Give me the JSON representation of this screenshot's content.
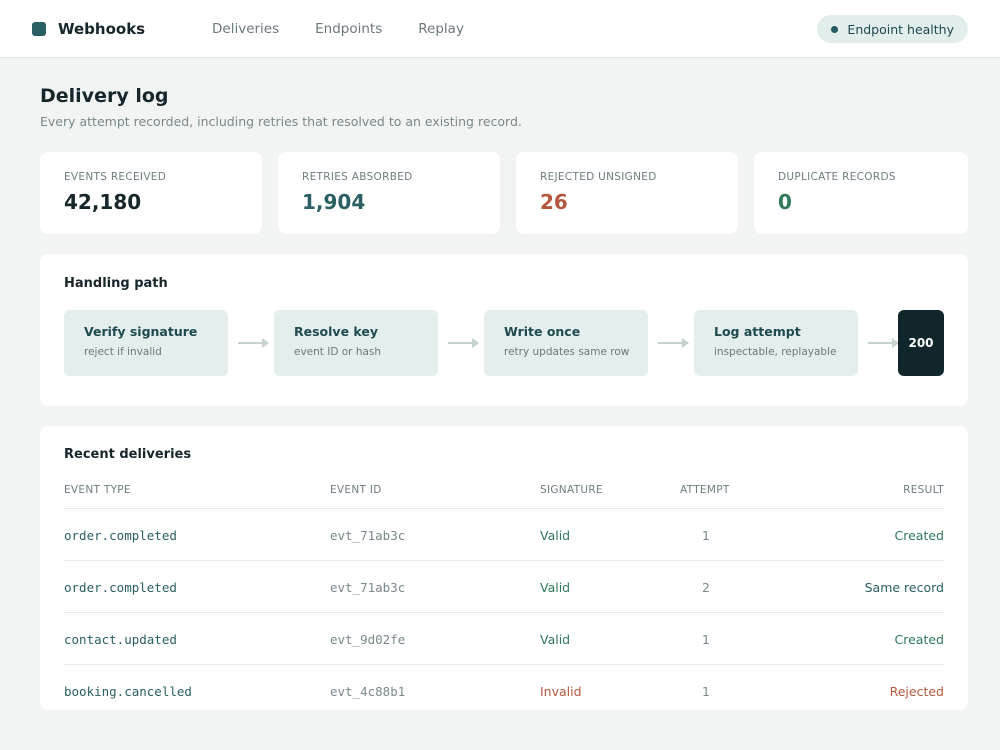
{
  "header": {
    "app_name": "Webhooks",
    "nav": [
      "Deliveries",
      "Endpoints",
      "Replay"
    ],
    "status": "Endpoint healthy"
  },
  "page": {
    "title": "Delivery log",
    "subtitle": "Every attempt recorded, including retries that resolved to an existing record."
  },
  "stats": [
    {
      "label": "EVENTS RECEIVED",
      "value": "42,180",
      "color": "#17262b"
    },
    {
      "label": "RETRIES ABSORBED",
      "value": "1,904",
      "color": "#2a5f63"
    },
    {
      "label": "REJECTED UNSIGNED",
      "value": "26",
      "color": "#b5563f"
    },
    {
      "label": "DUPLICATE RECORDS",
      "value": "0",
      "color": "#2f7a58"
    }
  ],
  "handling": {
    "title": "Handling path",
    "steps": [
      {
        "title": "Verify signature",
        "sub": "reject if invalid"
      },
      {
        "title": "Resolve key",
        "sub": "event ID or hash"
      },
      {
        "title": "Write once",
        "sub": "retry updates same row"
      },
      {
        "title": "Log attempt",
        "sub": "inspectable, replayable"
      }
    ],
    "final": "200"
  },
  "deliveries": {
    "title": "Recent deliveries",
    "columns": {
      "event_type": "EVENT TYPE",
      "event_id": "EVENT ID",
      "signature": "SIGNATURE",
      "attempt": "ATTEMPT",
      "result": "RESULT"
    },
    "rows": [
      {
        "event_type": "order.completed",
        "event_id": "evt_71ab3c",
        "signature": "Valid",
        "attempt": "1",
        "result": "Created"
      },
      {
        "event_type": "order.completed",
        "event_id": "evt_71ab3c",
        "signature": "Valid",
        "attempt": "2",
        "result": "Same record"
      },
      {
        "event_type": "contact.updated",
        "event_id": "evt_9d02fe",
        "signature": "Valid",
        "attempt": "1",
        "result": "Created"
      },
      {
        "event_type": "booking.cancelled",
        "event_id": "evt_4c88b1",
        "signature": "Invalid",
        "attempt": "1",
        "result": "Rejected"
      }
    ]
  },
  "colors": {
    "valid": "#2f7a58",
    "invalid": "#b5563f",
    "created": "#2f7a58",
    "same_record": "#2a5f63",
    "rejected": "#b5563f",
    "event_type": "#2a5f63"
  }
}
